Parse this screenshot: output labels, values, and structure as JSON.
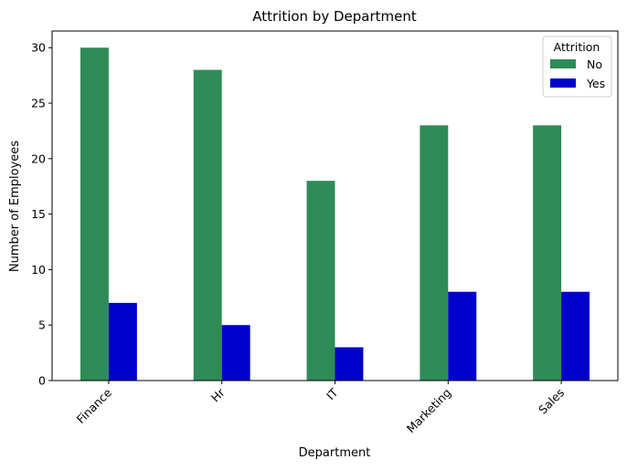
{
  "chart_data": {
    "type": "bar",
    "title": "Attrition by Department",
    "xlabel": "Department",
    "ylabel": "Number of Employees",
    "categories": [
      "Finance",
      "Hr",
      "IT",
      "Marketing",
      "Sales"
    ],
    "series": [
      {
        "name": "No",
        "values": [
          30,
          28,
          18,
          23,
          23
        ],
        "color": "#2e8b57"
      },
      {
        "name": "Yes",
        "values": [
          7,
          5,
          3,
          8,
          8
        ],
        "color": "#0000cd"
      }
    ],
    "ylim": [
      0,
      31.5
    ],
    "yticks": [
      0,
      5,
      10,
      15,
      20,
      25,
      30
    ],
    "grid": false,
    "legend": {
      "title": "Attrition",
      "placement": "top-right"
    }
  }
}
